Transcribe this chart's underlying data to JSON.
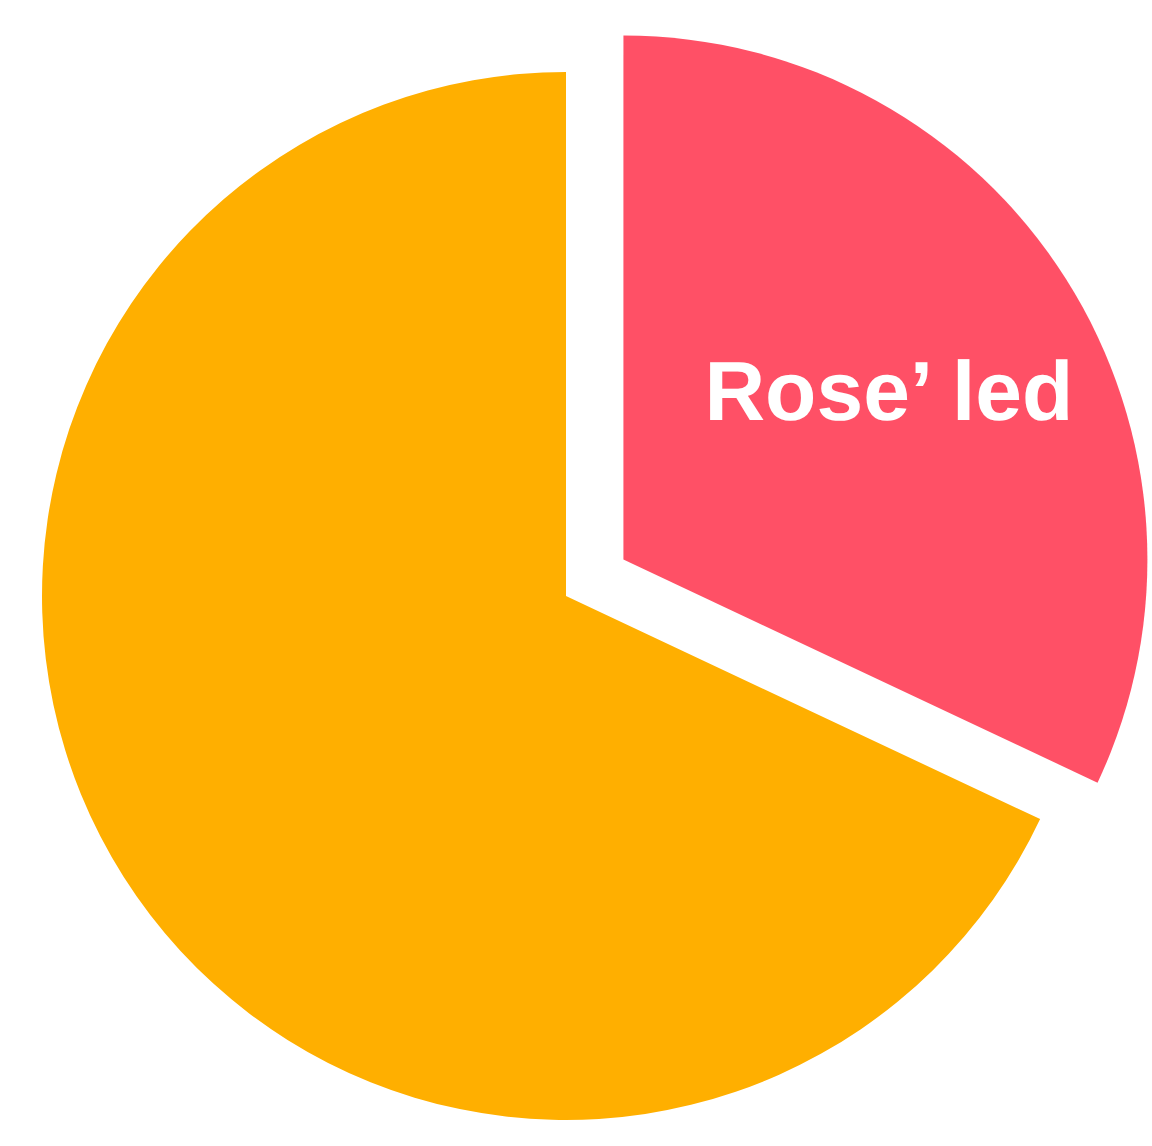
{
  "chart_data": {
    "type": "pie",
    "categories": [
      "Rose’ led",
      null
    ],
    "values": [
      32,
      68
    ],
    "colors": [
      "#ff5066",
      "#ffaf00"
    ]
  }
}
